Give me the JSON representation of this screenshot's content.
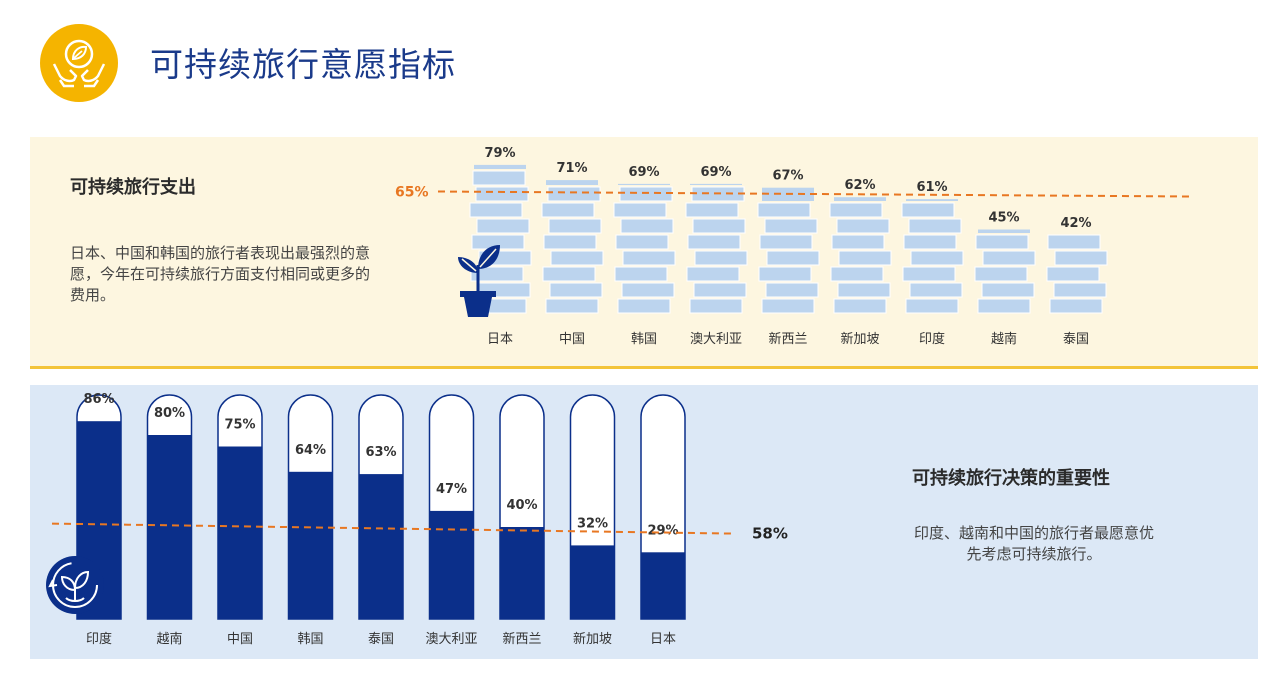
{
  "header": {
    "title": "可持续旅行意愿指标",
    "icon": "hands-leaf-icon",
    "accent": "#f5b400"
  },
  "spending_section": {
    "heading": "可持续旅行支出",
    "description": "日本、中国和韩国的旅行者表现出最强烈的意愿，今年在可持续旅行方面支付相同或更多的费用。",
    "icon": "potted-plant-icon"
  },
  "importance_section": {
    "heading": "可持续旅行决策的重要性",
    "description": "印度、越南和中国的旅行者最愿意优先考虑可持续旅行。",
    "icon": "recycle-leaf-icon"
  },
  "chart_data": [
    {
      "type": "bar",
      "categories": [
        "日本",
        "中国",
        "韩国",
        "澳大利亚",
        "新西兰",
        "新加坡",
        "印度",
        "越南",
        "泰国"
      ],
      "values": [
        79,
        71,
        69,
        69,
        67,
        62,
        61,
        45,
        42
      ],
      "value_labels": [
        "79%",
        "71%",
        "69%",
        "69%",
        "67%",
        "62%",
        "61%",
        "45%",
        "42%"
      ],
      "reference_line": {
        "value": 65,
        "label": "65%"
      },
      "ylim": [
        0,
        100
      ],
      "bar_color": "#bcd4ee",
      "reference_color": "#e87722"
    },
    {
      "type": "bar",
      "categories": [
        "印度",
        "越南",
        "中国",
        "韩国",
        "泰国",
        "澳大利亚",
        "新西兰",
        "新加坡",
        "日本"
      ],
      "values": [
        86,
        80,
        75,
        64,
        63,
        47,
        40,
        32,
        29
      ],
      "value_labels": [
        "86%",
        "80%",
        "75%",
        "64%",
        "63%",
        "47%",
        "40%",
        "32%",
        "29%"
      ],
      "reference_line": {
        "value": 58,
        "label": "58%"
      },
      "ylim": [
        0,
        100
      ],
      "bar_color": "#0b2f8a",
      "reference_color": "#e87722"
    }
  ]
}
